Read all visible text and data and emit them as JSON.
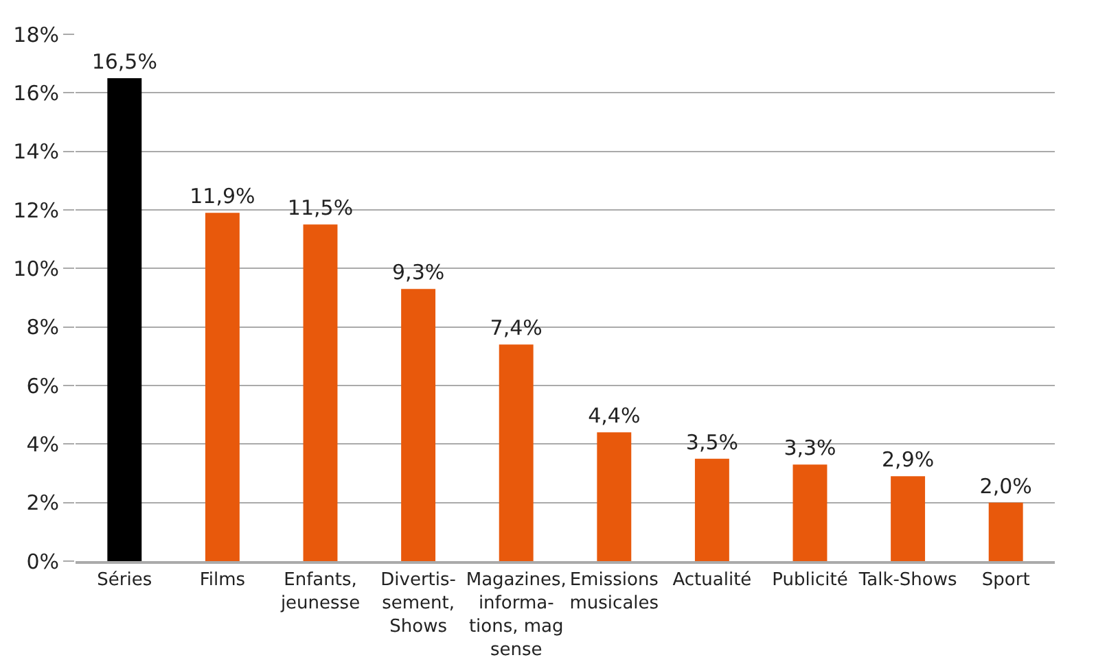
{
  "chart_data": {
    "type": "bar",
    "categories": [
      "Séries",
      "Films",
      "Enfants,\njeunesse",
      "Divertis-\nsement,\nShows",
      "Magazines,\ninforma-\ntions, mag\nsense",
      "Emissions\nmusicales",
      "Actualité",
      "Publicité",
      "Talk-Shows",
      "Sport"
    ],
    "values": [
      16.5,
      11.9,
      11.5,
      9.3,
      7.4,
      4.4,
      3.5,
      3.3,
      2.9,
      2.0
    ],
    "value_labels": [
      "16,5%",
      "11,9%",
      "11,5%",
      "9,3%",
      "7,4%",
      "4,4%",
      "3,5%",
      "3,3%",
      "2,9%",
      "2,0%"
    ],
    "colors": [
      "#000000",
      "#e8590c",
      "#e8590c",
      "#e8590c",
      "#e8590c",
      "#e8590c",
      "#e8590c",
      "#e8590c",
      "#e8590c",
      "#e8590c"
    ],
    "ylim": [
      0,
      18
    ],
    "yticks": [
      {
        "value": 0,
        "label": "0%"
      },
      {
        "value": 2,
        "label": "2%"
      },
      {
        "value": 4,
        "label": "4%"
      },
      {
        "value": 6,
        "label": "6%"
      },
      {
        "value": 8,
        "label": "8%"
      },
      {
        "value": 10,
        "label": "10%"
      },
      {
        "value": 12,
        "label": "12%"
      },
      {
        "value": 14,
        "label": "14%"
      },
      {
        "value": 16,
        "label": "16%"
      },
      {
        "value": 18,
        "label": "18%"
      }
    ],
    "grid": "y"
  }
}
